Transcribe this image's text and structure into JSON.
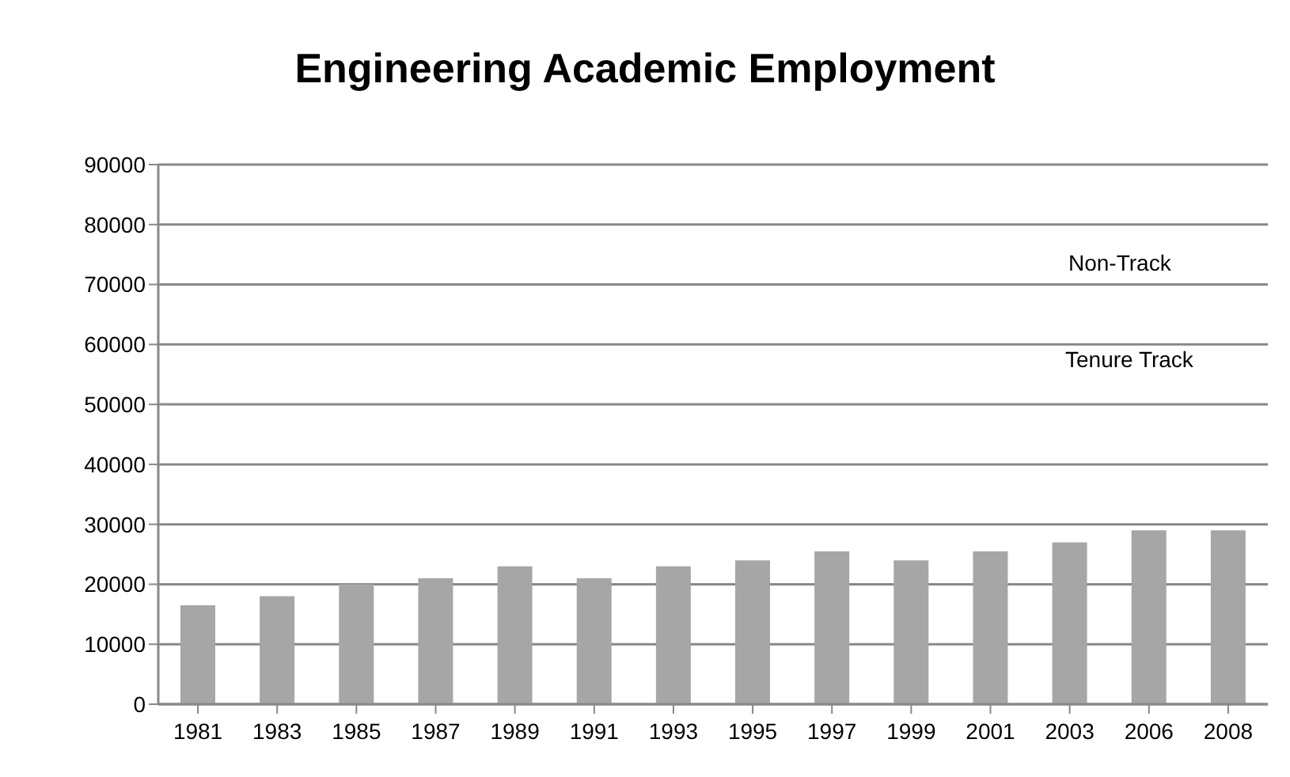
{
  "chart_data": {
    "type": "bar",
    "title": "Engineering Academic Employment",
    "categories": [
      "1981",
      "1983",
      "1985",
      "1987",
      "1989",
      "1991",
      "1993",
      "1995",
      "1997",
      "1999",
      "2001",
      "2003",
      "2006",
      "2008"
    ],
    "series": [
      {
        "color": "#a6a6a6",
        "values": [
          16500,
          18000,
          20000,
          21000,
          23000,
          21000,
          23000,
          24000,
          25500,
          24000,
          25500,
          27000,
          29000,
          29000
        ]
      }
    ],
    "ylim": [
      0,
      90000
    ],
    "yticks": [
      0,
      10000,
      20000,
      30000,
      40000,
      50000,
      60000,
      70000,
      80000,
      90000
    ],
    "grid": "y",
    "annotations": [
      "Non-Track",
      "Tenure Track"
    ]
  }
}
